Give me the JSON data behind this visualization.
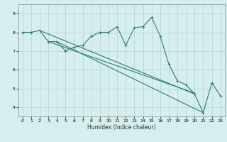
{
  "xlabel": "Humidex (Indice chaleur)",
  "ylabel": "",
  "background_color": "#d6eeee",
  "grid_color": "#b8d8d8",
  "line_color": "#2e7d72",
  "xlim": [
    -0.5,
    23.5
  ],
  "ylim": [
    3.5,
    9.5
  ],
  "xticks": [
    0,
    1,
    2,
    3,
    4,
    5,
    6,
    7,
    8,
    9,
    10,
    11,
    12,
    13,
    14,
    15,
    16,
    17,
    18,
    19,
    20,
    21,
    22,
    23
  ],
  "yticks": [
    4,
    5,
    6,
    7,
    8,
    9
  ],
  "main_line_x": [
    0,
    1,
    2,
    3,
    4,
    5,
    6,
    7,
    8,
    9,
    10,
    11,
    12,
    13,
    14,
    15,
    16,
    17,
    18,
    19,
    20,
    21,
    22,
    23
  ],
  "main_line_y": [
    8.0,
    8.0,
    8.1,
    7.5,
    7.5,
    7.0,
    7.2,
    7.3,
    7.8,
    8.0,
    8.0,
    8.3,
    7.3,
    8.25,
    8.3,
    8.8,
    7.8,
    6.3,
    5.4,
    5.2,
    4.7,
    3.7,
    5.3,
    4.6
  ],
  "trend_lines": [
    {
      "x": [
        2,
        20
      ],
      "y": [
        8.1,
        4.7
      ]
    },
    {
      "x": [
        3,
        20
      ],
      "y": [
        7.5,
        4.75
      ]
    },
    {
      "x": [
        4,
        21
      ],
      "y": [
        7.5,
        3.7
      ]
    }
  ]
}
